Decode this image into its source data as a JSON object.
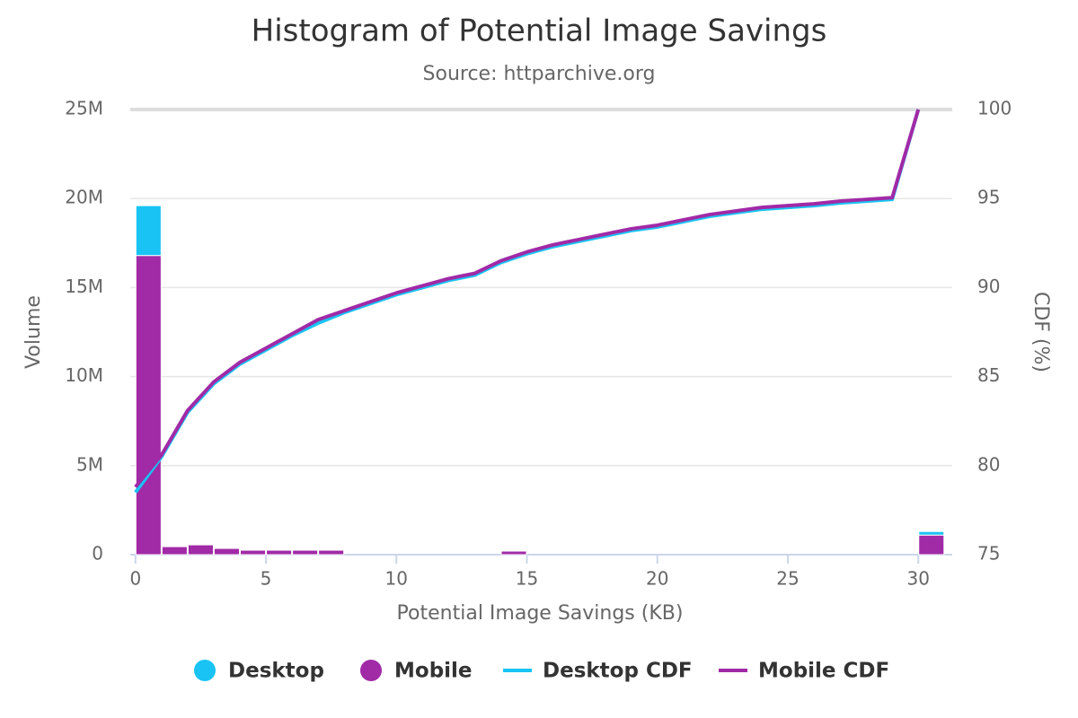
{
  "chart_data": {
    "type": "histogram",
    "title": "Histogram of Potential Image Savings",
    "subtitle": "Source: httparchive.org",
    "xlabel": "Potential Image Savings (KB)",
    "ylabel": "Volume",
    "y2label": "CDF (%)",
    "stacked": true,
    "grid": true,
    "legend": "bottom",
    "bins": [
      0,
      1,
      2,
      3,
      4,
      5,
      6,
      7,
      8,
      9,
      10,
      11,
      12,
      13,
      14,
      15,
      16,
      17,
      18,
      19,
      20,
      21,
      22,
      23,
      24,
      25,
      26,
      27,
      28,
      29,
      30,
      31
    ],
    "xlim": [
      -0.2,
      31.3
    ],
    "xticks": [
      0,
      5,
      10,
      15,
      20,
      25,
      30
    ],
    "ylim": [
      0,
      25000000
    ],
    "yticks": [
      {
        "value": 0,
        "label": "0"
      },
      {
        "value": 5000000,
        "label": "5M"
      },
      {
        "value": 10000000,
        "label": "10M"
      },
      {
        "value": 15000000,
        "label": "15M"
      },
      {
        "value": 20000000,
        "label": "20M"
      },
      {
        "value": 25000000,
        "label": "25M"
      }
    ],
    "y2lim": [
      75,
      100
    ],
    "y2ticks": [
      75,
      80,
      85,
      90,
      95,
      100
    ],
    "series": [
      {
        "name": "Desktop",
        "color": "#19c3f3",
        "values": [
          2800000,
          0,
          0,
          0,
          0,
          0,
          0,
          0,
          0,
          0,
          0,
          0,
          0,
          0,
          0,
          0,
          0,
          0,
          0,
          0,
          0,
          0,
          0,
          0,
          0,
          0,
          0,
          0,
          0,
          0,
          200000
        ]
      },
      {
        "name": "Mobile",
        "color": "#a12aa6",
        "values": [
          16800000,
          450000,
          550000,
          350000,
          250000,
          250000,
          250000,
          250000,
          0,
          0,
          0,
          0,
          0,
          0,
          200000,
          0,
          0,
          0,
          0,
          0,
          0,
          0,
          0,
          0,
          0,
          0,
          0,
          0,
          0,
          0,
          1100000
        ]
      },
      {
        "name": "Desktop CDF",
        "color": "#19c3f3",
        "axis": "y2",
        "type": "line",
        "x": [
          0,
          1,
          2,
          3,
          4,
          5,
          6,
          7,
          8,
          9,
          10,
          11,
          12,
          13,
          14,
          15,
          16,
          17,
          18,
          19,
          20,
          21,
          22,
          23,
          24,
          25,
          26,
          27,
          28,
          29,
          30
        ],
        "values": [
          78.5,
          80.5,
          83.0,
          84.6,
          85.7,
          86.5,
          87.3,
          88.0,
          88.6,
          89.1,
          89.6,
          90.0,
          90.4,
          90.7,
          91.4,
          91.9,
          92.3,
          92.6,
          92.9,
          93.2,
          93.4,
          93.7,
          94.0,
          94.2,
          94.4,
          94.5,
          94.6,
          94.75,
          94.85,
          94.95,
          100
        ]
      },
      {
        "name": "Mobile CDF",
        "color": "#a12aa6",
        "axis": "y2",
        "type": "line",
        "x": [
          0,
          1,
          2,
          3,
          4,
          5,
          6,
          7,
          8,
          9,
          10,
          11,
          12,
          13,
          14,
          15,
          16,
          17,
          18,
          19,
          20,
          21,
          22,
          23,
          24,
          25,
          26,
          27,
          28,
          29,
          30
        ],
        "values": [
          78.8,
          80.6,
          83.1,
          84.7,
          85.8,
          86.6,
          87.4,
          88.2,
          88.7,
          89.2,
          89.7,
          90.1,
          90.5,
          90.8,
          91.5,
          92.0,
          92.4,
          92.7,
          93.0,
          93.3,
          93.5,
          93.8,
          94.1,
          94.3,
          94.5,
          94.6,
          94.7,
          94.85,
          94.95,
          95.05,
          100
        ]
      }
    ]
  }
}
